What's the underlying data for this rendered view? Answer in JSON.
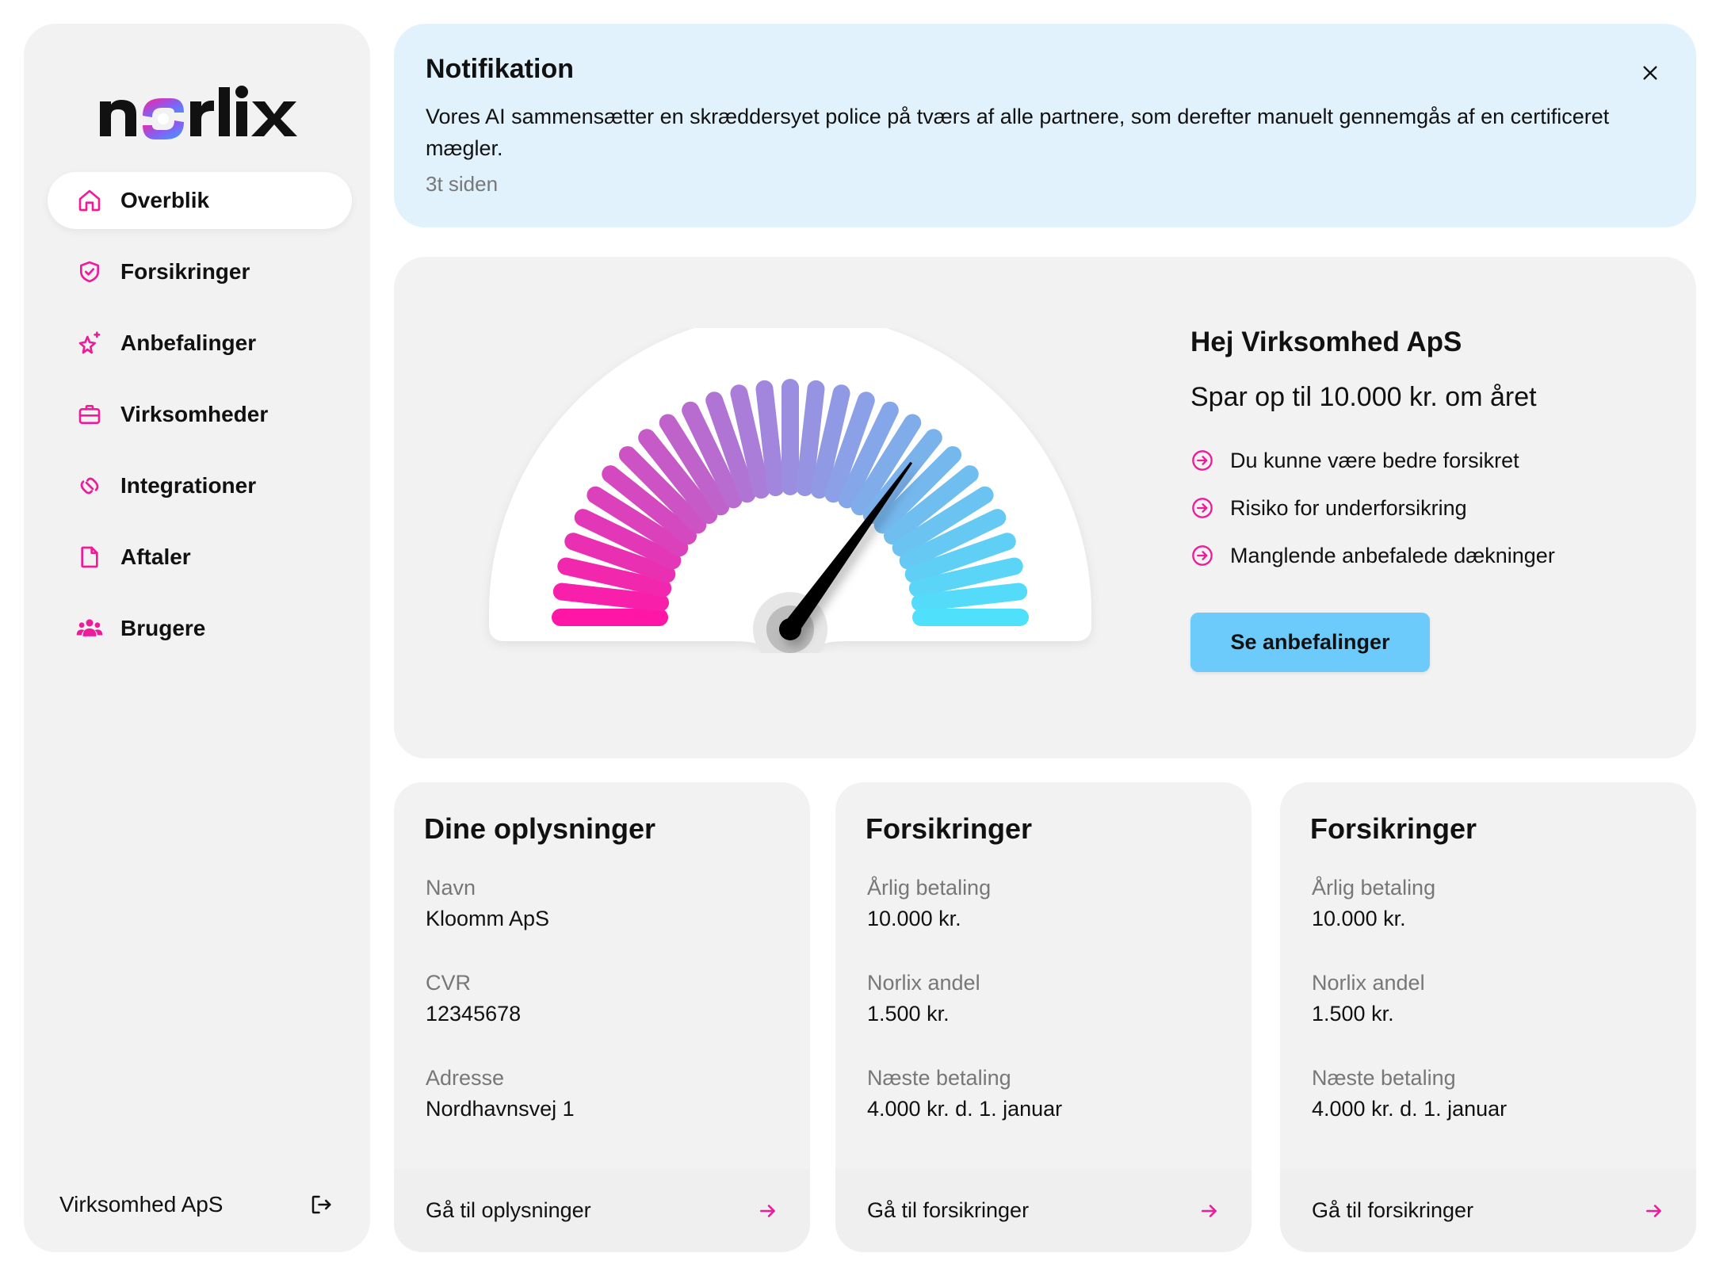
{
  "brand": {
    "logo_text": "norlix",
    "accent": "#ee1c9b",
    "accent_blue": "#5bd8fb"
  },
  "sidebar": {
    "items": [
      {
        "label": "Overblik",
        "icon": "home-icon",
        "active": true
      },
      {
        "label": "Forsikringer",
        "icon": "shield-check-icon",
        "active": false
      },
      {
        "label": "Anbefalinger",
        "icon": "sparkle-star-icon",
        "active": false
      },
      {
        "label": "Virksomheder",
        "icon": "briefcase-icon",
        "active": false
      },
      {
        "label": "Integrationer",
        "icon": "link-icon",
        "active": false
      },
      {
        "label": "Aftaler",
        "icon": "document-icon",
        "active": false
      },
      {
        "label": "Brugere",
        "icon": "users-icon",
        "active": false
      }
    ],
    "footer": {
      "company": "Virksomhed ApS",
      "logout_icon": "logout-icon"
    }
  },
  "notification": {
    "title": "Notifikation",
    "body": "Vores AI sammensætter en skræddersyet police på tværs af alle partnere, som derefter manuelt gennemgås af en certificeret mægler.",
    "time": "3t siden",
    "close_icon": "close-icon"
  },
  "hero": {
    "greeting": "Hej Virksomhed ApS",
    "savings": "Spar op til 10.000 kr. om året",
    "bullets": [
      "Du kunne være bedre forsikret",
      "Risiko for underforsikring",
      "Manglende anbefalede dækninger"
    ],
    "cta": "Se anbefalinger",
    "gauge": {
      "value": 0.7,
      "segments": 29,
      "color_start": "#ff16a6",
      "color_mid": "#9b8ee0",
      "color_end": "#4fe1fb"
    }
  },
  "cards": [
    {
      "title": "Dine oplysninger",
      "fields": [
        {
          "label": "Navn",
          "value": "Kloomm ApS"
        },
        {
          "label": "CVR",
          "value": "12345678"
        },
        {
          "label": "Adresse",
          "value": "Nordhavnsvej 1"
        }
      ],
      "link": "Gå til oplysninger"
    },
    {
      "title": "Forsikringer",
      "fields": [
        {
          "label": "Årlig betaling",
          "value": "10.000 kr."
        },
        {
          "label": "Norlix andel",
          "value": "1.500 kr."
        },
        {
          "label": "Næste betaling",
          "value": "4.000 kr. d. 1. januar"
        }
      ],
      "link": "Gå til forsikringer"
    },
    {
      "title": "Forsikringer",
      "fields": [
        {
          "label": "Årlig betaling",
          "value": "10.000 kr."
        },
        {
          "label": "Norlix andel",
          "value": "1.500 kr."
        },
        {
          "label": "Næste betaling",
          "value": "4.000 kr. d. 1. januar"
        }
      ],
      "link": "Gå til forsikringer"
    }
  ]
}
